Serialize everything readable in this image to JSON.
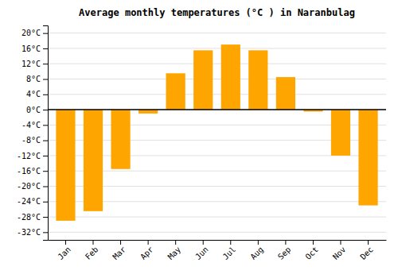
{
  "chart_data": {
    "type": "bar",
    "title": "Average monthly temperatures (°C ) in Naranbulag",
    "categories": [
      "Jan",
      "Feb",
      "Mar",
      "Apr",
      "May",
      "Jun",
      "Jul",
      "Aug",
      "Sep",
      "Oct",
      "Nov",
      "Dec"
    ],
    "values": [
      -29,
      -26.5,
      -15.5,
      -1,
      9.5,
      15.5,
      17,
      15.5,
      8.5,
      -0.5,
      -12,
      -25
    ],
    "color": "#FFA500",
    "ylim": [
      -34,
      22
    ],
    "yticks": [
      {
        "value": -32,
        "label": "-32°C"
      },
      {
        "value": -28,
        "label": "-28°C"
      },
      {
        "value": -24,
        "label": "-24°C"
      },
      {
        "value": -20,
        "label": "-20°C"
      },
      {
        "value": -16,
        "label": "-16°C"
      },
      {
        "value": -12,
        "label": "-12°C"
      },
      {
        "value": -8,
        "label": "-8°C"
      },
      {
        "value": -4,
        "label": "-4°C"
      },
      {
        "value": 0,
        "label": "0°C"
      },
      {
        "value": 4,
        "label": "4°C"
      },
      {
        "value": 8,
        "label": "8°C"
      },
      {
        "value": 12,
        "label": "12°C"
      },
      {
        "value": 16,
        "label": "16°C"
      },
      {
        "value": 20,
        "label": "20°C"
      }
    ],
    "grid": true
  }
}
